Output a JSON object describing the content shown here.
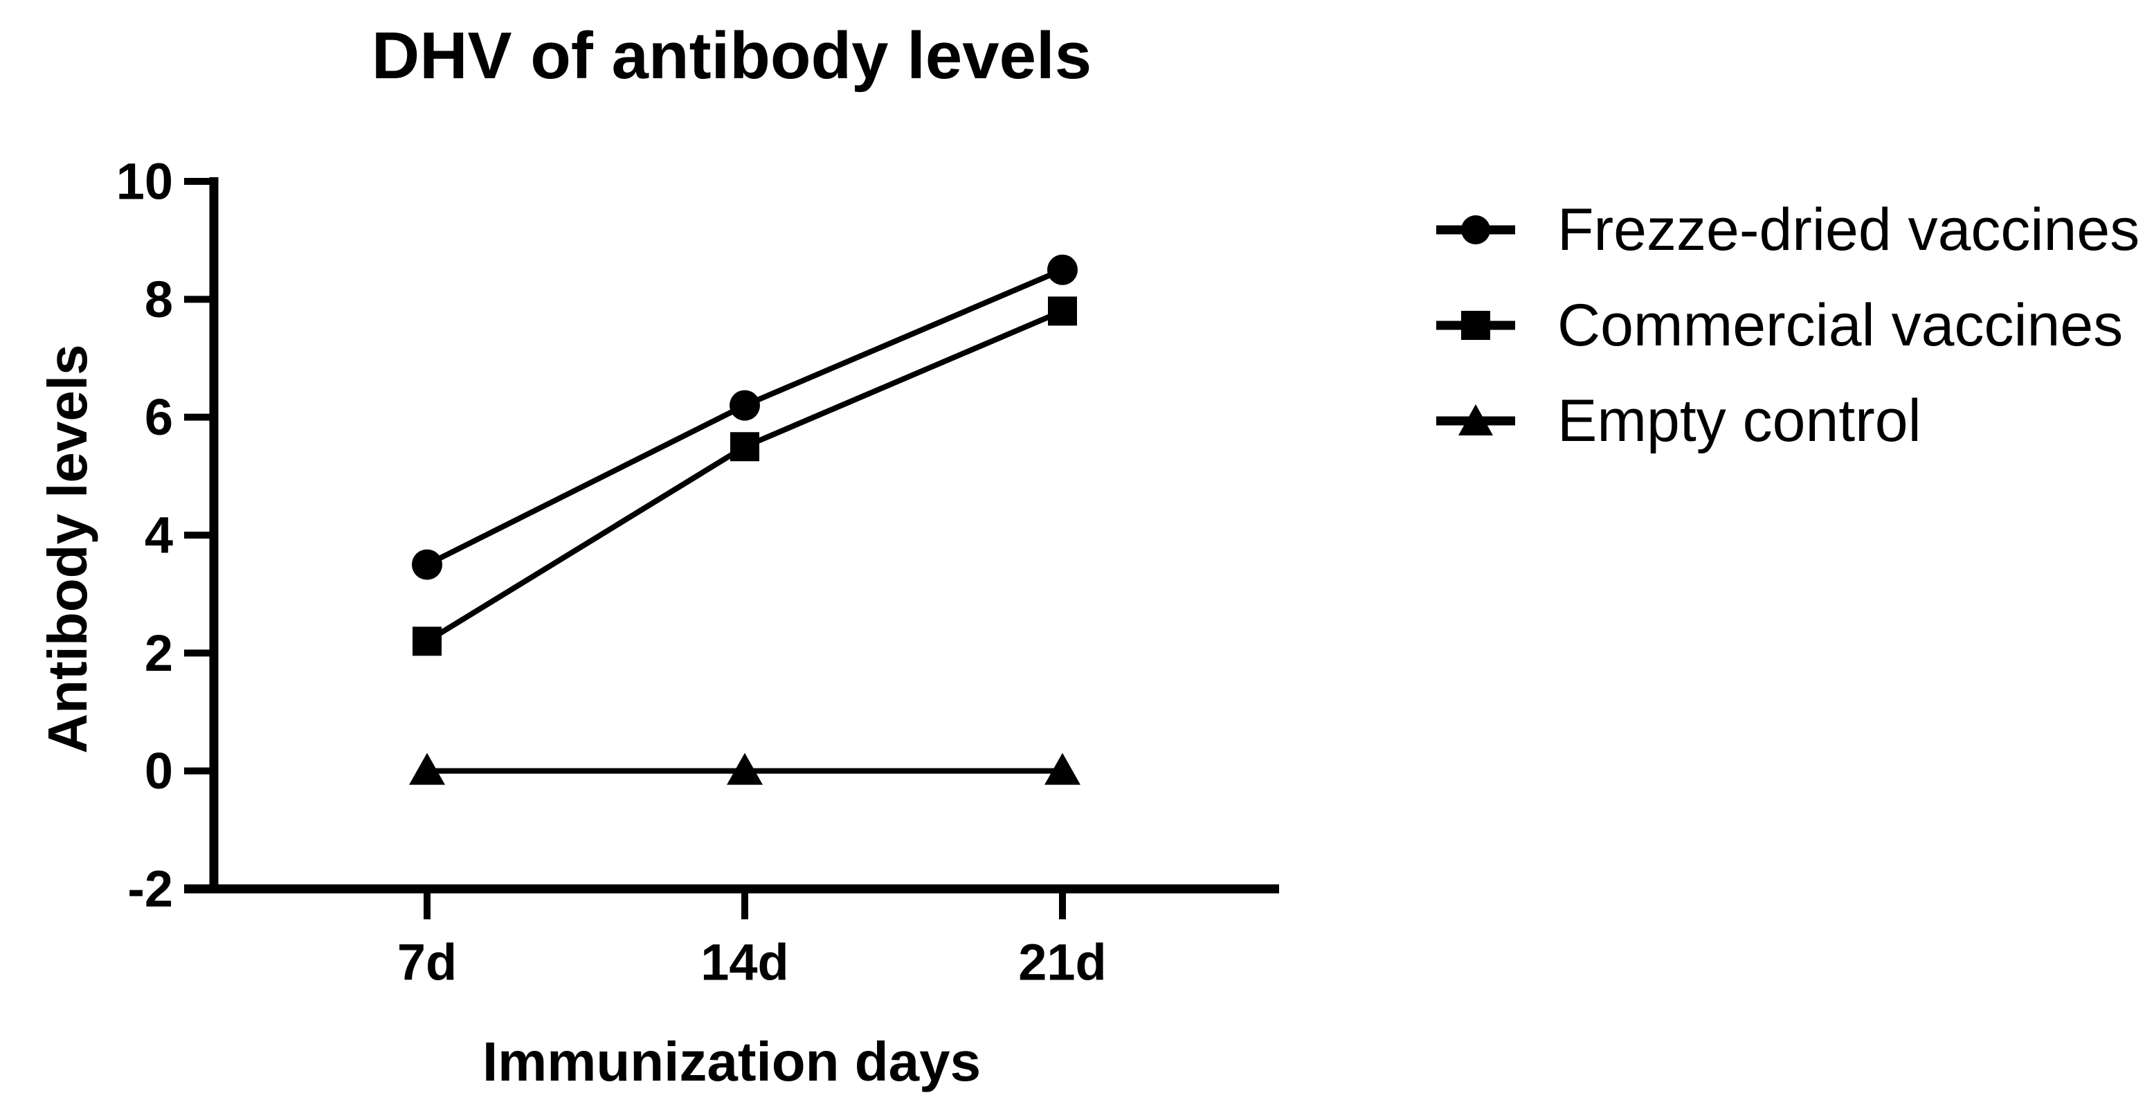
{
  "chart_data": {
    "type": "line",
    "title": "DHV of antibody levels",
    "xlabel": "Immunization days",
    "ylabel": "Antibody levels",
    "categories": [
      "7d",
      "14d",
      "21d"
    ],
    "series": [
      {
        "name": "Frezze-dried vaccines",
        "marker": "circle",
        "color": "#000000",
        "values": [
          3.5,
          6.2,
          8.5
        ]
      },
      {
        "name": "Commercial vaccines",
        "marker": "square",
        "color": "#000000",
        "values": [
          2.2,
          5.5,
          7.8
        ]
      },
      {
        "name": "Empty control",
        "marker": "triangle",
        "color": "#000000",
        "values": [
          0,
          0,
          0
        ]
      }
    ],
    "ylim": [
      -2,
      10
    ],
    "yticks": [
      10,
      8,
      6,
      4,
      2,
      0,
      -2
    ],
    "grid": false,
    "legend_position": "right",
    "colors": {
      "foreground": "#000000",
      "background": "#ffffff"
    }
  }
}
